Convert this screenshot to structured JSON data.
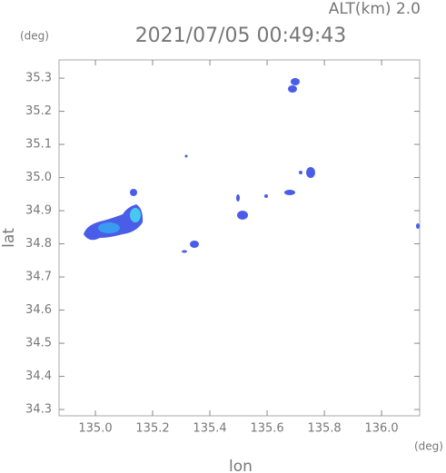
{
  "chart_data": {
    "type": "map",
    "title": "2021/07/05 00:49:43",
    "subtitle": "ALT(km) 2.0",
    "x_label": "lon",
    "y_label": "lat",
    "x_unit": "(deg)",
    "y_unit": "(deg)",
    "xlim": [
      134.873,
      136.133
    ],
    "ylim": [
      34.281,
      35.355
    ],
    "xticks": [
      {
        "value": 135,
        "label": "135.0"
      },
      135.2,
      135.4,
      135.6,
      135.8,
      {
        "value": 136,
        "label": "136.0"
      }
    ],
    "yticks": [
      34.3,
      34.4,
      34.5,
      34.6,
      34.7,
      34.8,
      34.9,
      {
        "value": 35,
        "label": "35.0"
      },
      35.1,
      35.2,
      35.3
    ]
  }
}
